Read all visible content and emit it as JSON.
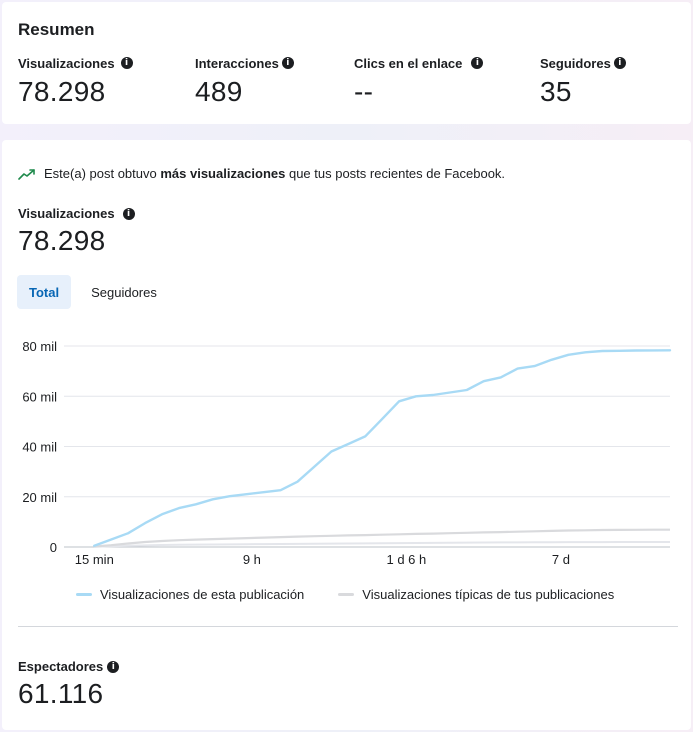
{
  "summary": {
    "title": "Resumen",
    "metrics": [
      {
        "label": "Visualizaciones",
        "value": "78.298"
      },
      {
        "label": "Interacciones",
        "value": "489"
      },
      {
        "label": "Clics en el enlace",
        "value": "--"
      },
      {
        "label": "Seguidores",
        "value": "35"
      }
    ]
  },
  "insight": {
    "prefix": "Este(a) post obtuvo ",
    "bold": "más visualizaciones",
    "suffix": " que tus posts recientes de Facebook."
  },
  "views": {
    "label": "Visualizaciones",
    "value": "78.298"
  },
  "tabs": [
    {
      "label": "Total",
      "active": true
    },
    {
      "label": "Seguidores",
      "active": false
    }
  ],
  "spectators": {
    "label": "Espectadores",
    "value": "61.116"
  },
  "colors": {
    "accent": "#0866b4",
    "line_post": "#a8daf5",
    "line_typical": "#d9dadd"
  },
  "chart_data": {
    "type": "line",
    "x_ticks": [
      "15 min",
      "9 h",
      "1 d 6 h",
      "7 d"
    ],
    "y_ticks": [
      "0",
      "20 mil",
      "40 mil",
      "60 mil",
      "80 mil"
    ],
    "ylim": [
      0,
      80000
    ],
    "grid": true,
    "legend_position": "bottom",
    "series": [
      {
        "name": "Visualizaciones de esta publicación",
        "color": "#a8daf5",
        "values": [
          500,
          3000,
          5500,
          9500,
          13000,
          15500,
          17000,
          19000,
          20200,
          21000,
          21800,
          22600,
          26000,
          32000,
          38000,
          41000,
          44000,
          51000,
          58000,
          60000,
          60500,
          61500,
          62500,
          66000,
          67500,
          71000,
          72000,
          74500,
          76500,
          77500,
          78000,
          78100,
          78200,
          78250,
          78298
        ]
      },
      {
        "name": "Visualizaciones típicas de tus publicaciones",
        "color": "#d9dadd",
        "values": [
          200,
          700,
          1400,
          2000,
          2400,
          2700,
          2950,
          3150,
          3350,
          3550,
          3750,
          3950,
          4150,
          4300,
          4450,
          4600,
          4750,
          4900,
          5050,
          5200,
          5350,
          5500,
          5650,
          5800,
          5950,
          6100,
          6250,
          6400,
          6550,
          6650,
          6750,
          6800,
          6850,
          6880,
          6900
        ]
      }
    ],
    "baseline_series": {
      "values": [
        100,
        300,
        500,
        650,
        800,
        900,
        950,
        1000,
        1050,
        1100,
        1150,
        1200,
        1250,
        1300,
        1350,
        1400,
        1450,
        1500,
        1550,
        1600,
        1650,
        1700,
        1750,
        1800,
        1850,
        1850,
        1900,
        1900,
        1950,
        1950,
        1950,
        2000,
        2000,
        2000,
        2000
      ]
    }
  }
}
